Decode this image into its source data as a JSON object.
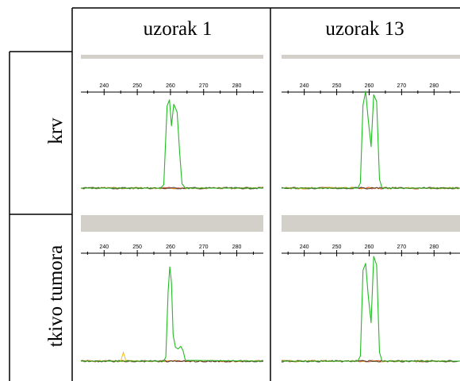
{
  "columns": [
    "uzorak 1",
    "uzorak 13"
  ],
  "rows": [
    "krv",
    "tkivo tumora"
  ],
  "colors": {
    "trace": "#22bb22",
    "noise_red": "#cc2222",
    "noise_orange": "#dd8800",
    "noise_dark": "#333333",
    "header_bar": "#d3cfc9",
    "small_peak": "#e8c020",
    "grid_line": "#000000"
  },
  "chart_data": [
    {
      "type": "line",
      "title": "",
      "column": "uzorak 1",
      "row": "krv",
      "xlabel": "",
      "ylabel": "",
      "xlim": [
        233,
        288
      ],
      "ylim": [
        0,
        100
      ],
      "grid": false,
      "xticks": [
        240,
        250,
        260,
        270,
        280
      ],
      "series": [
        {
          "x": [
            233,
            257.0,
            258.0,
            259.0,
            259.7,
            260.3,
            261.0,
            262.0,
            262.8,
            263.5,
            264.5,
            288
          ],
          "values": [
            0,
            0,
            4,
            95,
            102,
            72,
            97,
            88,
            40,
            5,
            0,
            0
          ]
        }
      ]
    },
    {
      "type": "line",
      "title": "",
      "column": "uzorak 13",
      "row": "krv",
      "xlabel": "",
      "ylabel": "",
      "xlim": [
        233,
        288
      ],
      "ylim": [
        0,
        100
      ],
      "grid": false,
      "xticks": [
        240,
        250,
        260,
        270,
        280
      ],
      "series": [
        {
          "x": [
            233,
            256.5,
            257.3,
            258.1,
            258.9,
            259.7,
            260.6,
            261.4,
            262.3,
            263.2,
            264.0,
            288
          ],
          "values": [
            0,
            0,
            6,
            96,
            112,
            80,
            48,
            108,
            100,
            10,
            0,
            0
          ]
        }
      ]
    },
    {
      "type": "line",
      "title": "",
      "column": "uzorak 1",
      "row": "tkivo tumora",
      "xlabel": "",
      "ylabel": "",
      "xlim": [
        233,
        288
      ],
      "ylim": [
        0,
        100
      ],
      "grid": false,
      "xticks": [
        240,
        250,
        260,
        270,
        280
      ],
      "series": [
        {
          "x": [
            233,
            258.0,
            258.6,
            259.3,
            259.8,
            260.3,
            260.8,
            261.5,
            262.3,
            263.1,
            263.8,
            264.5,
            288
          ],
          "values": [
            0,
            0,
            5,
            80,
            108,
            90,
            30,
            16,
            14,
            17,
            12,
            1,
            0
          ]
        }
      ]
    },
    {
      "type": "line",
      "title": "",
      "column": "uzorak 13",
      "row": "tkivo tumora",
      "xlabel": "",
      "ylabel": "",
      "xlim": [
        233,
        288
      ],
      "ylim": [
        0,
        100
      ],
      "grid": false,
      "xticks": [
        240,
        250,
        260,
        270,
        280
      ],
      "series": [
        {
          "x": [
            233,
            256.5,
            257.3,
            258.1,
            258.9,
            259.7,
            260.6,
            261.4,
            262.3,
            263.2,
            264.0,
            288
          ],
          "values": [
            0,
            0,
            6,
            104,
            112,
            76,
            44,
            120,
            110,
            10,
            0,
            0
          ]
        }
      ]
    }
  ]
}
